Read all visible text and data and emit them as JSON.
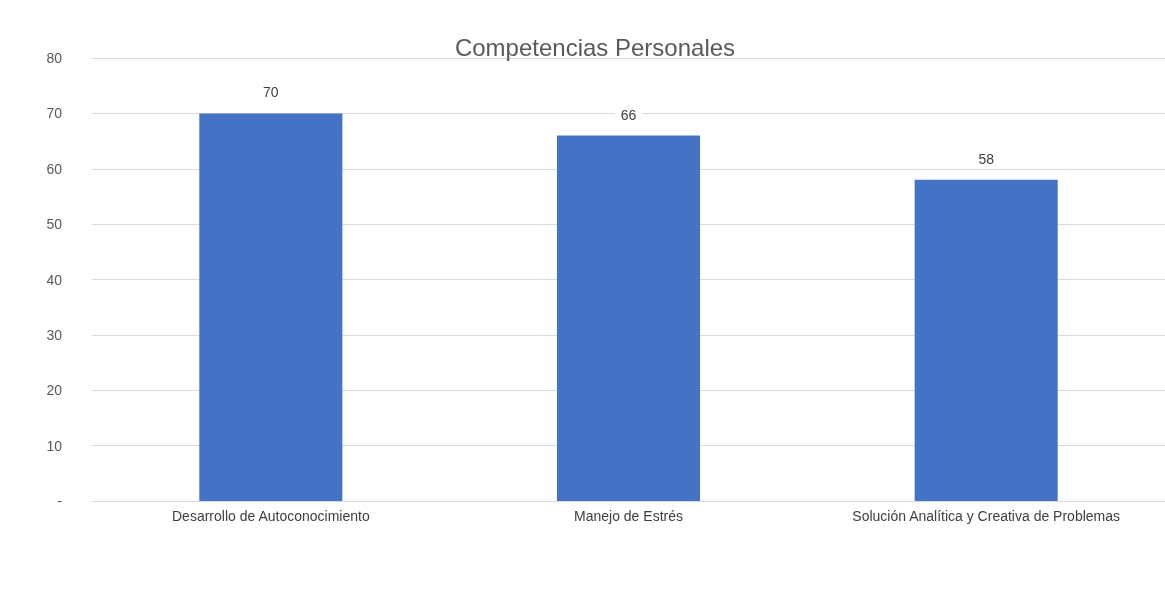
{
  "chart_data": {
    "type": "bar",
    "title": "Competencias Personales",
    "categories": [
      "Desarrollo de Autoconocimiento",
      "Manejo de Estrés",
      "Solución Analítica y Creativa de Problemas"
    ],
    "values": [
      70,
      66,
      58
    ],
    "color": "#4472c4",
    "ylim": [
      0,
      80
    ],
    "yticks": [
      {
        "value": 0,
        "label": "-"
      },
      10,
      20,
      30,
      40,
      50,
      60,
      70,
      80
    ],
    "grid": "y",
    "data_labels": true
  }
}
